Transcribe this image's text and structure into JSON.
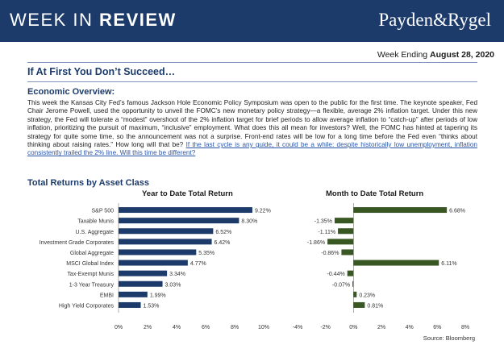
{
  "header": {
    "title_regular": "WEEK IN ",
    "title_bold": "REVIEW",
    "logo_text": "Payden&Rygel"
  },
  "week": {
    "prefix": "Week Ending ",
    "date": "August 28, 2020"
  },
  "headline": "If At First You Don’t Succeed…",
  "overview": {
    "heading": "Economic Overview:",
    "body": "This week the Kansas City Fed’s famous Jackson Hole Economic Policy Symposium was open to the public for the first time. The keynote speaker, Fed Chair Jerome Powell, used the opportunity to unveil the FOMC’s new monetary policy strategy—a flexible, average 2% inflation target. Under this new strategy, the Fed will tolerate a “modest” overshoot of the 2% inflation target for brief periods to allow average inflation to “catch-up” after periods of low inflation, prioritizing the pursuit of maximum, “inclusive” employment. What does this all mean for investors? Well, the FOMC has hinted at tapering its strategy for quite some time, so the announcement was not a surprise. Front-end rates will be low for a long time before the Fed even “thinks about thinking about raising rates.” How long will that be? ",
    "link": "If the last cycle is any guide, it could be a while: despite historically low unemployment, inflation consistently trailed the 2% line. Will this time be different?"
  },
  "section_title": "Total Returns by Asset Class",
  "source": "Source: Bloomberg",
  "chart_data": [
    {
      "type": "bar",
      "orientation": "horizontal",
      "title": "Year to Date Total Return",
      "categories": [
        "S&P 500",
        "Taxable Munis",
        "U.S. Aggregate",
        "Investment Grade Corporates",
        "Global Aggregate",
        "MSCI Global Index",
        "Tax-Exempt Munis",
        "1-3 Year Treasury",
        "EMBI",
        "High Yield Corporates"
      ],
      "values": [
        9.22,
        8.3,
        6.52,
        6.42,
        5.35,
        4.77,
        3.34,
        3.03,
        1.99,
        1.53
      ],
      "value_labels": [
        "9.22%",
        "8.30%",
        "6.52%",
        "6.42%",
        "5.35%",
        "4.77%",
        "3.34%",
        "3.03%",
        "1.99%",
        "1.53%"
      ],
      "xlim": [
        0,
        10
      ],
      "ticks": [
        0,
        2,
        4,
        6,
        8,
        10
      ],
      "tick_labels": [
        "0%",
        "2%",
        "4%",
        "6%",
        "8%",
        "10%"
      ],
      "color": "#1c3b6b",
      "grid": false
    },
    {
      "type": "bar",
      "orientation": "horizontal",
      "title": "Month to Date Total Return",
      "categories": [
        "S&P 500",
        "Taxable Munis",
        "U.S. Aggregate",
        "Investment Grade Corporates",
        "Global Aggregate",
        "MSCI Global Index",
        "Tax-Exempt Munis",
        "1-3 Year Treasury",
        "EMBI",
        "High Yield Corporates"
      ],
      "values": [
        6.68,
        -1.35,
        -1.11,
        -1.86,
        -0.86,
        6.11,
        -0.44,
        -0.07,
        0.23,
        0.81
      ],
      "value_labels": [
        "6.68%",
        "-1.35%",
        "-1.11%",
        "-1.86%",
        "-0.86%",
        "6.11%",
        "-0.44%",
        "-0.07%",
        "0.23%",
        "0.81%"
      ],
      "xlim": [
        -4,
        8
      ],
      "ticks": [
        -4,
        -2,
        0,
        2,
        4,
        6,
        8
      ],
      "tick_labels": [
        "-4%",
        "-2%",
        "0%",
        "2%",
        "4%",
        "6%",
        "8%"
      ],
      "color": "#385723",
      "grid": false
    }
  ]
}
